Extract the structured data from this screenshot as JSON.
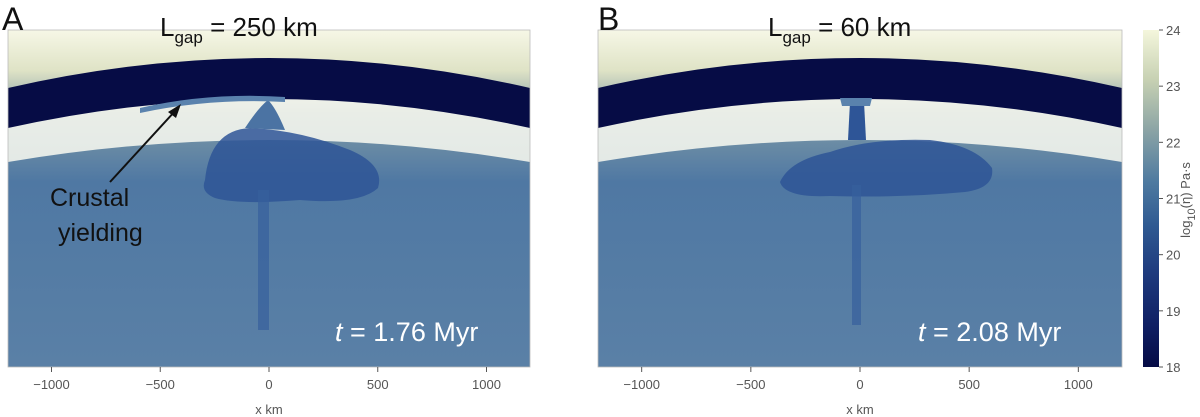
{
  "panels": [
    {
      "letter": "A",
      "title_main": "L",
      "title_sub": "gap",
      "title_rest": " = 250 km",
      "time_var": "t",
      "time_rest": " = 1.76 Myr",
      "annotation": [
        "Crustal",
        "yielding"
      ]
    },
    {
      "letter": "B",
      "title_main": "L",
      "title_sub": "gap",
      "title_rest": " = 60 km",
      "time_var": "t",
      "time_rest": " = 2.08 Myr"
    }
  ],
  "axis": {
    "x_ticks": [
      "−1000",
      "−500",
      "0",
      "500",
      "1000"
    ],
    "x_values": [
      -1000,
      -500,
      0,
      500,
      1000
    ],
    "x_range": [
      -1200,
      1200
    ],
    "x_label": "x km"
  },
  "colorbar": {
    "label_pre": "log",
    "label_sub": "10",
    "label_post": "(η) Pa·s",
    "ticks": [
      "24",
      "23",
      "22",
      "21",
      "20",
      "19",
      "18"
    ],
    "range": [
      18,
      24
    ],
    "colors": [
      "#050b45",
      "#0f1f63",
      "#1e3b7e",
      "#2f5a92",
      "#4e7aa0",
      "#8aa3a5",
      "#c6d0b2",
      "#f4f6dc"
    ]
  }
}
